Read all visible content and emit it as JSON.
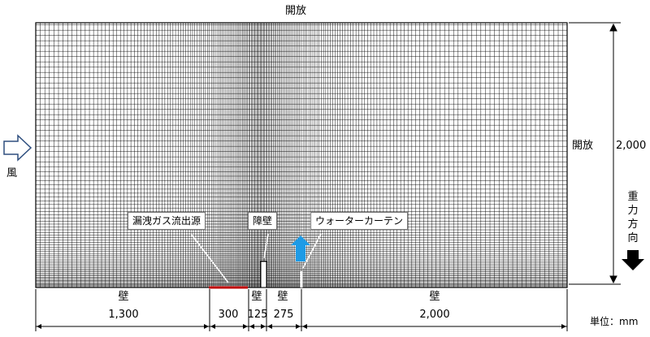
{
  "labels": {
    "top_boundary": "開放",
    "right_boundary": "開放",
    "wind": "風",
    "gravity": "重力方向",
    "unit": "単位：mm"
  },
  "callouts": {
    "leak_source": "漏洩ガス流出源",
    "barrier": "障壁",
    "water_curtain": "ウォーターカーテン"
  },
  "bottom_segments": [
    {
      "label": "壁",
      "length": "1,300"
    },
    {
      "label": "",
      "length": "300"
    },
    {
      "label": "壁",
      "length": "125"
    },
    {
      "label": "壁",
      "length": "275"
    },
    {
      "label": "壁",
      "length": "2,000"
    }
  ],
  "height": "2,000",
  "colors": {
    "mesh": "#000000",
    "leak_source": "#c00000",
    "water_curtain_arrow": "#1e9be6",
    "wind_arrow_outline": "#2f4f7f",
    "gravity_arrow": "#000000"
  }
}
